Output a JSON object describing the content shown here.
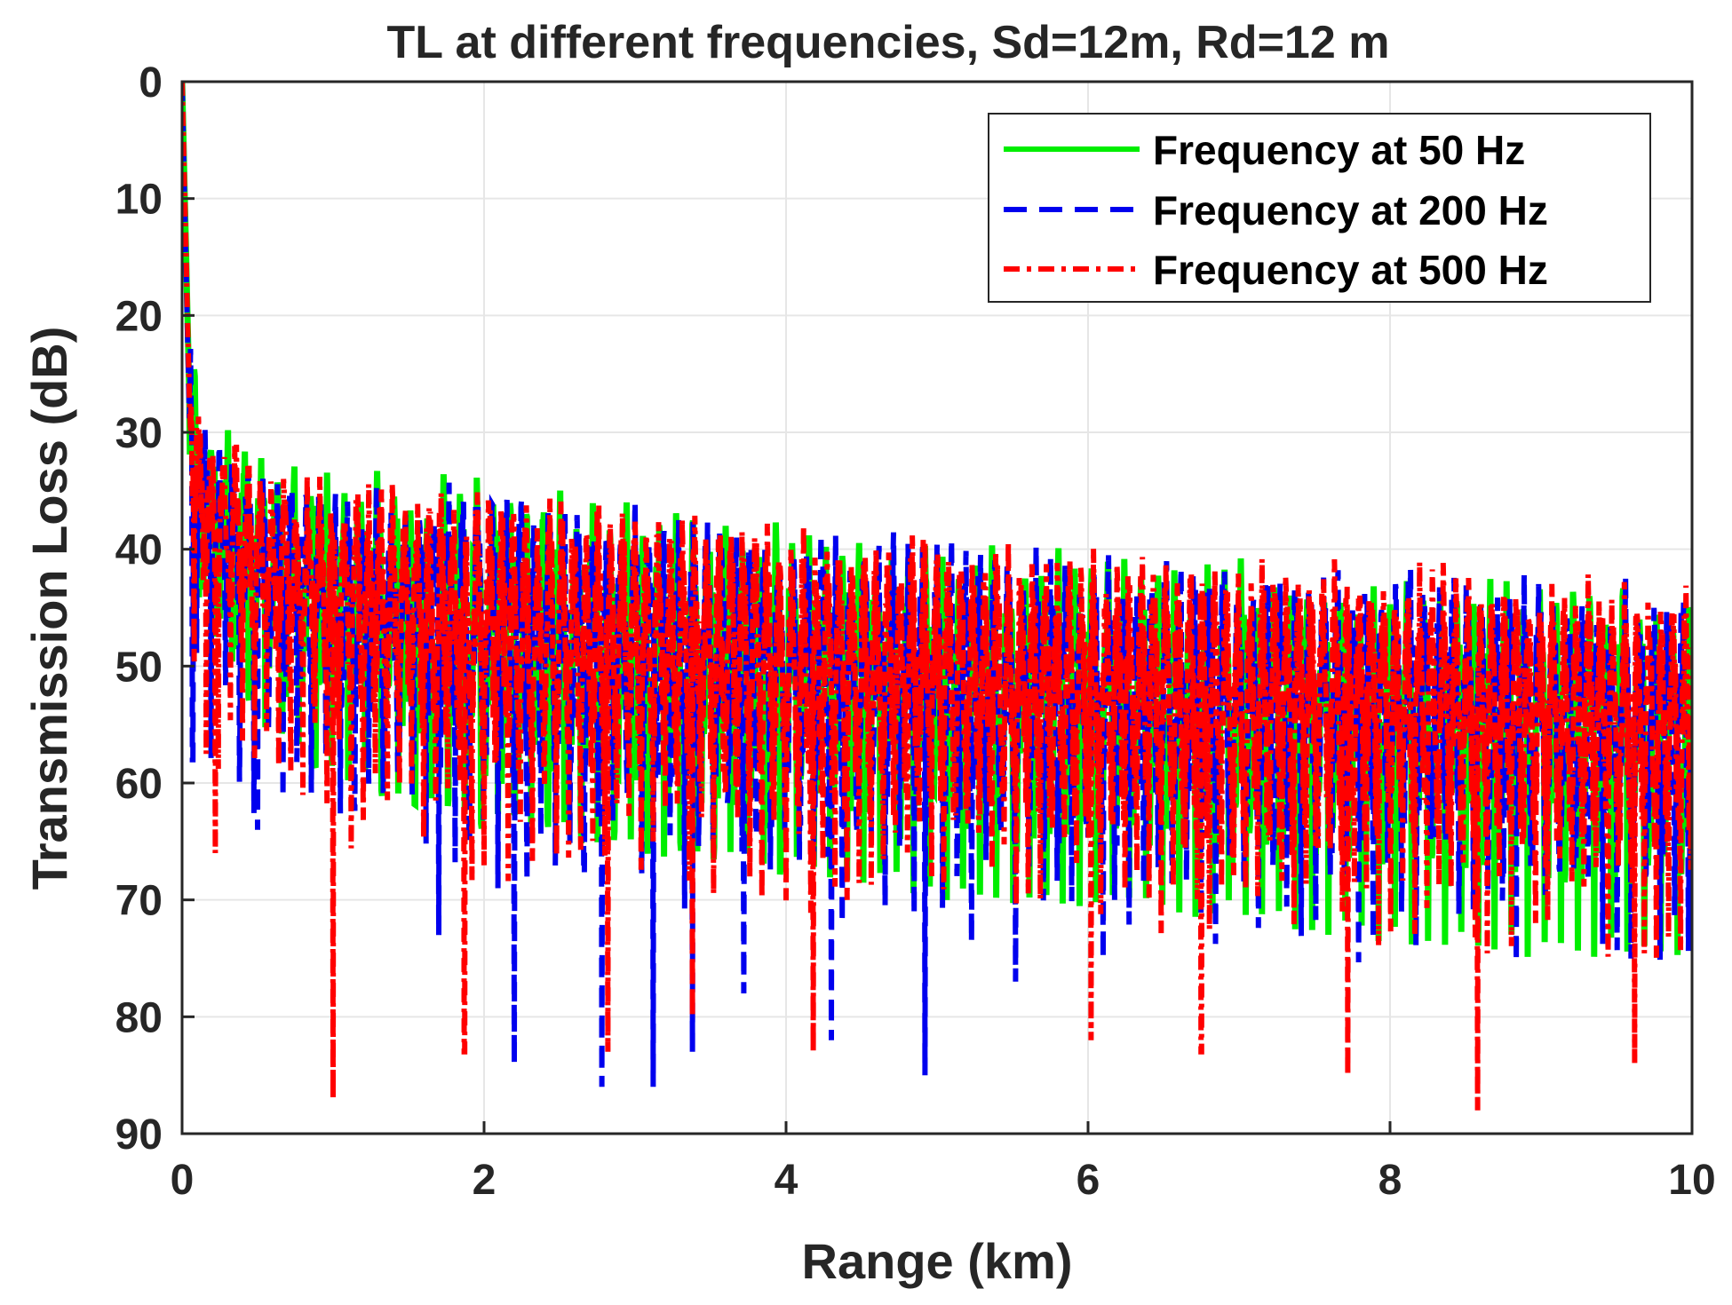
{
  "chart_data": {
    "type": "line",
    "title": "TL at different frequencies, Sd=12m, Rd=12 m",
    "xlabel": "Range (km)",
    "ylabel": "Transmission Loss (dB)",
    "xlim": [
      0,
      10
    ],
    "ylim": [
      0,
      90
    ],
    "y_reversed": true,
    "grid": true,
    "x_ticks": [
      "0",
      "2",
      "4",
      "6",
      "8",
      "10"
    ],
    "y_ticks": [
      "0",
      "10",
      "20",
      "30",
      "40",
      "50",
      "60",
      "70",
      "80",
      "90"
    ],
    "legend_position": "top-right",
    "series": [
      {
        "name": "Frequency at 50 Hz",
        "color": "#00ee00",
        "style": "solid",
        "points": [
          [
            0,
            0
          ],
          [
            0.05,
            28
          ],
          [
            0.1,
            35
          ],
          [
            0.2,
            38
          ],
          [
            0.5,
            41
          ],
          [
            1,
            44
          ],
          [
            2,
            47
          ],
          [
            3,
            49
          ],
          [
            4,
            51
          ],
          [
            5,
            52
          ],
          [
            6,
            53
          ],
          [
            7,
            54
          ],
          [
            8,
            55
          ],
          [
            9,
            56
          ],
          [
            10,
            57
          ]
        ],
        "lower_envelope": [
          [
            0.05,
            44
          ],
          [
            0.5,
            55
          ],
          [
            1,
            60
          ],
          [
            2,
            64
          ],
          [
            3,
            66
          ],
          [
            4,
            68
          ],
          [
            5,
            70
          ],
          [
            6,
            71
          ],
          [
            7,
            72
          ],
          [
            8,
            74
          ],
          [
            9,
            75
          ],
          [
            10,
            75
          ]
        ]
      },
      {
        "name": "Frequency at 200 Hz",
        "color": "#0000ee",
        "style": "dashed",
        "points": [
          [
            0,
            0
          ],
          [
            0.05,
            30
          ],
          [
            0.1,
            36
          ],
          [
            0.2,
            39
          ],
          [
            0.5,
            42
          ],
          [
            1,
            45
          ],
          [
            2,
            47
          ],
          [
            3,
            49
          ],
          [
            4,
            51
          ],
          [
            5,
            52
          ],
          [
            6,
            53
          ],
          [
            7,
            54
          ],
          [
            8,
            54
          ],
          [
            9,
            55
          ],
          [
            10,
            56
          ]
        ],
        "notable_minima": [
          [
            0.07,
            58
          ],
          [
            0.5,
            64
          ],
          [
            1.7,
            73
          ],
          [
            2.2,
            84
          ],
          [
            2.78,
            86
          ],
          [
            3.12,
            86
          ],
          [
            3.38,
            83
          ],
          [
            3.72,
            78
          ],
          [
            4.3,
            82
          ],
          [
            4.92,
            85
          ],
          [
            5.52,
            77
          ],
          [
            6.1,
            75
          ]
        ]
      },
      {
        "name": "Frequency at 500 Hz",
        "color": "#ff0000",
        "style": "dash-dot",
        "points": [
          [
            0,
            0
          ],
          [
            0.05,
            28
          ],
          [
            0.1,
            35
          ],
          [
            0.2,
            38
          ],
          [
            0.5,
            41
          ],
          [
            1,
            44
          ],
          [
            2,
            47
          ],
          [
            3,
            48
          ],
          [
            4,
            50
          ],
          [
            5,
            51
          ],
          [
            6,
            52
          ],
          [
            7,
            53
          ],
          [
            8,
            53
          ],
          [
            9,
            54
          ],
          [
            10,
            55
          ]
        ],
        "notable_minima": [
          [
            0.22,
            66
          ],
          [
            1.0,
            87
          ],
          [
            1.87,
            83
          ],
          [
            2.82,
            83
          ],
          [
            3.38,
            80
          ],
          [
            4.18,
            83
          ],
          [
            6.02,
            82
          ],
          [
            6.75,
            83
          ],
          [
            7.72,
            85
          ],
          [
            8.58,
            88
          ],
          [
            9.62,
            84
          ]
        ]
      }
    ]
  }
}
